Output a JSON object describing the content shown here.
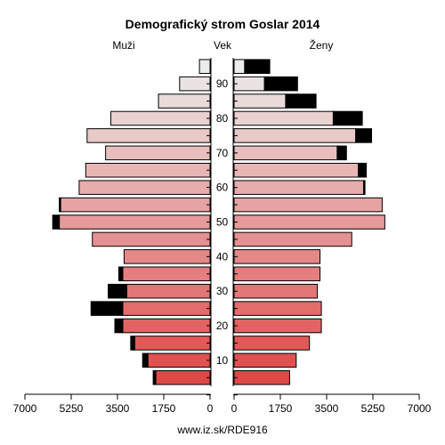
{
  "chart_data": {
    "type": "bar",
    "title": "Demografický strom Goslar 2014",
    "left_label": "Muži",
    "center_label": "Vek",
    "right_label": "Ženy",
    "footer": "www.iz.sk/RDE916",
    "x_ticks_left": [
      "7000",
      "5250",
      "3500",
      "1750",
      "0"
    ],
    "x_ticks_right": [
      "0",
      "1750",
      "3500",
      "5250",
      "7000"
    ],
    "x_tick_values": [
      0,
      1750,
      3500,
      5250,
      7000
    ],
    "y_tick_labels": [
      "10",
      "20",
      "30",
      "40",
      "50",
      "60",
      "70",
      "80",
      "90"
    ],
    "xlim": [
      0,
      7000
    ],
    "age_groups": [
      "0-4",
      "5-9",
      "10-14",
      "15-19",
      "20-24",
      "25-29",
      "30-34",
      "35-39",
      "40-44",
      "45-49",
      "50-54",
      "55-59",
      "60-64",
      "65-69",
      "70-74",
      "75-79",
      "80-84",
      "85-89",
      "90+"
    ],
    "series": [
      {
        "name": "Muži",
        "values": [
          2050,
          2350,
          2850,
          3300,
          3300,
          3150,
          3300,
          3250,
          4450,
          5700,
          5650,
          4950,
          4700,
          3950,
          4650,
          3750,
          1950,
          1150,
          400
        ],
        "excess": [
          100,
          200,
          150,
          300,
          1200,
          700,
          150,
          0,
          0,
          250,
          50,
          0,
          0,
          0,
          0,
          0,
          0,
          0,
          0
        ]
      },
      {
        "name": "Ženy",
        "values": [
          2100,
          2350,
          2850,
          3300,
          3300,
          3150,
          3250,
          3250,
          4450,
          5700,
          5600,
          4900,
          4700,
          3900,
          4600,
          3750,
          1950,
          1150,
          400
        ],
        "excess": [
          0,
          0,
          0,
          0,
          0,
          0,
          0,
          0,
          0,
          0,
          0,
          50,
          300,
          350,
          600,
          1100,
          1150,
          1250,
          950
        ]
      }
    ],
    "excess_color": "#000000"
  }
}
